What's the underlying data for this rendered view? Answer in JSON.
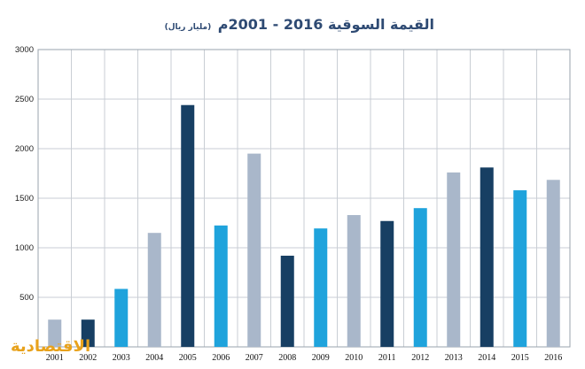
{
  "chart_data": {
    "type": "bar",
    "title": "القيمة السوقية 2016 - 2001م",
    "unit_label": "(مليار ريال)",
    "xlabel": "",
    "ylabel": "",
    "ylim": [
      0,
      3000
    ],
    "yticks": [
      500,
      1000,
      1500,
      2000,
      2500,
      3000
    ],
    "grid": true,
    "categories": [
      "2001",
      "2002",
      "2003",
      "2004",
      "2005",
      "2006",
      "2007",
      "2008",
      "2009",
      "2010",
      "2011",
      "2012",
      "2013",
      "2014",
      "2015",
      "2016"
    ],
    "values": [
      275,
      275,
      585,
      1150,
      2440,
      1225,
      1950,
      920,
      1195,
      1330,
      1270,
      1400,
      1760,
      1810,
      1580,
      1685
    ],
    "bar_colors": [
      "#a9b7ca",
      "#173f63",
      "#1fa3dc",
      "#a9b7ca",
      "#173f63",
      "#1fa3dc",
      "#a9b7ca",
      "#173f63",
      "#1fa3dc",
      "#a9b7ca",
      "#173f63",
      "#1fa3dc",
      "#a9b7ca",
      "#173f63",
      "#1fa3dc",
      "#a9b7ca"
    ]
  },
  "watermark": "الاقتصادية"
}
